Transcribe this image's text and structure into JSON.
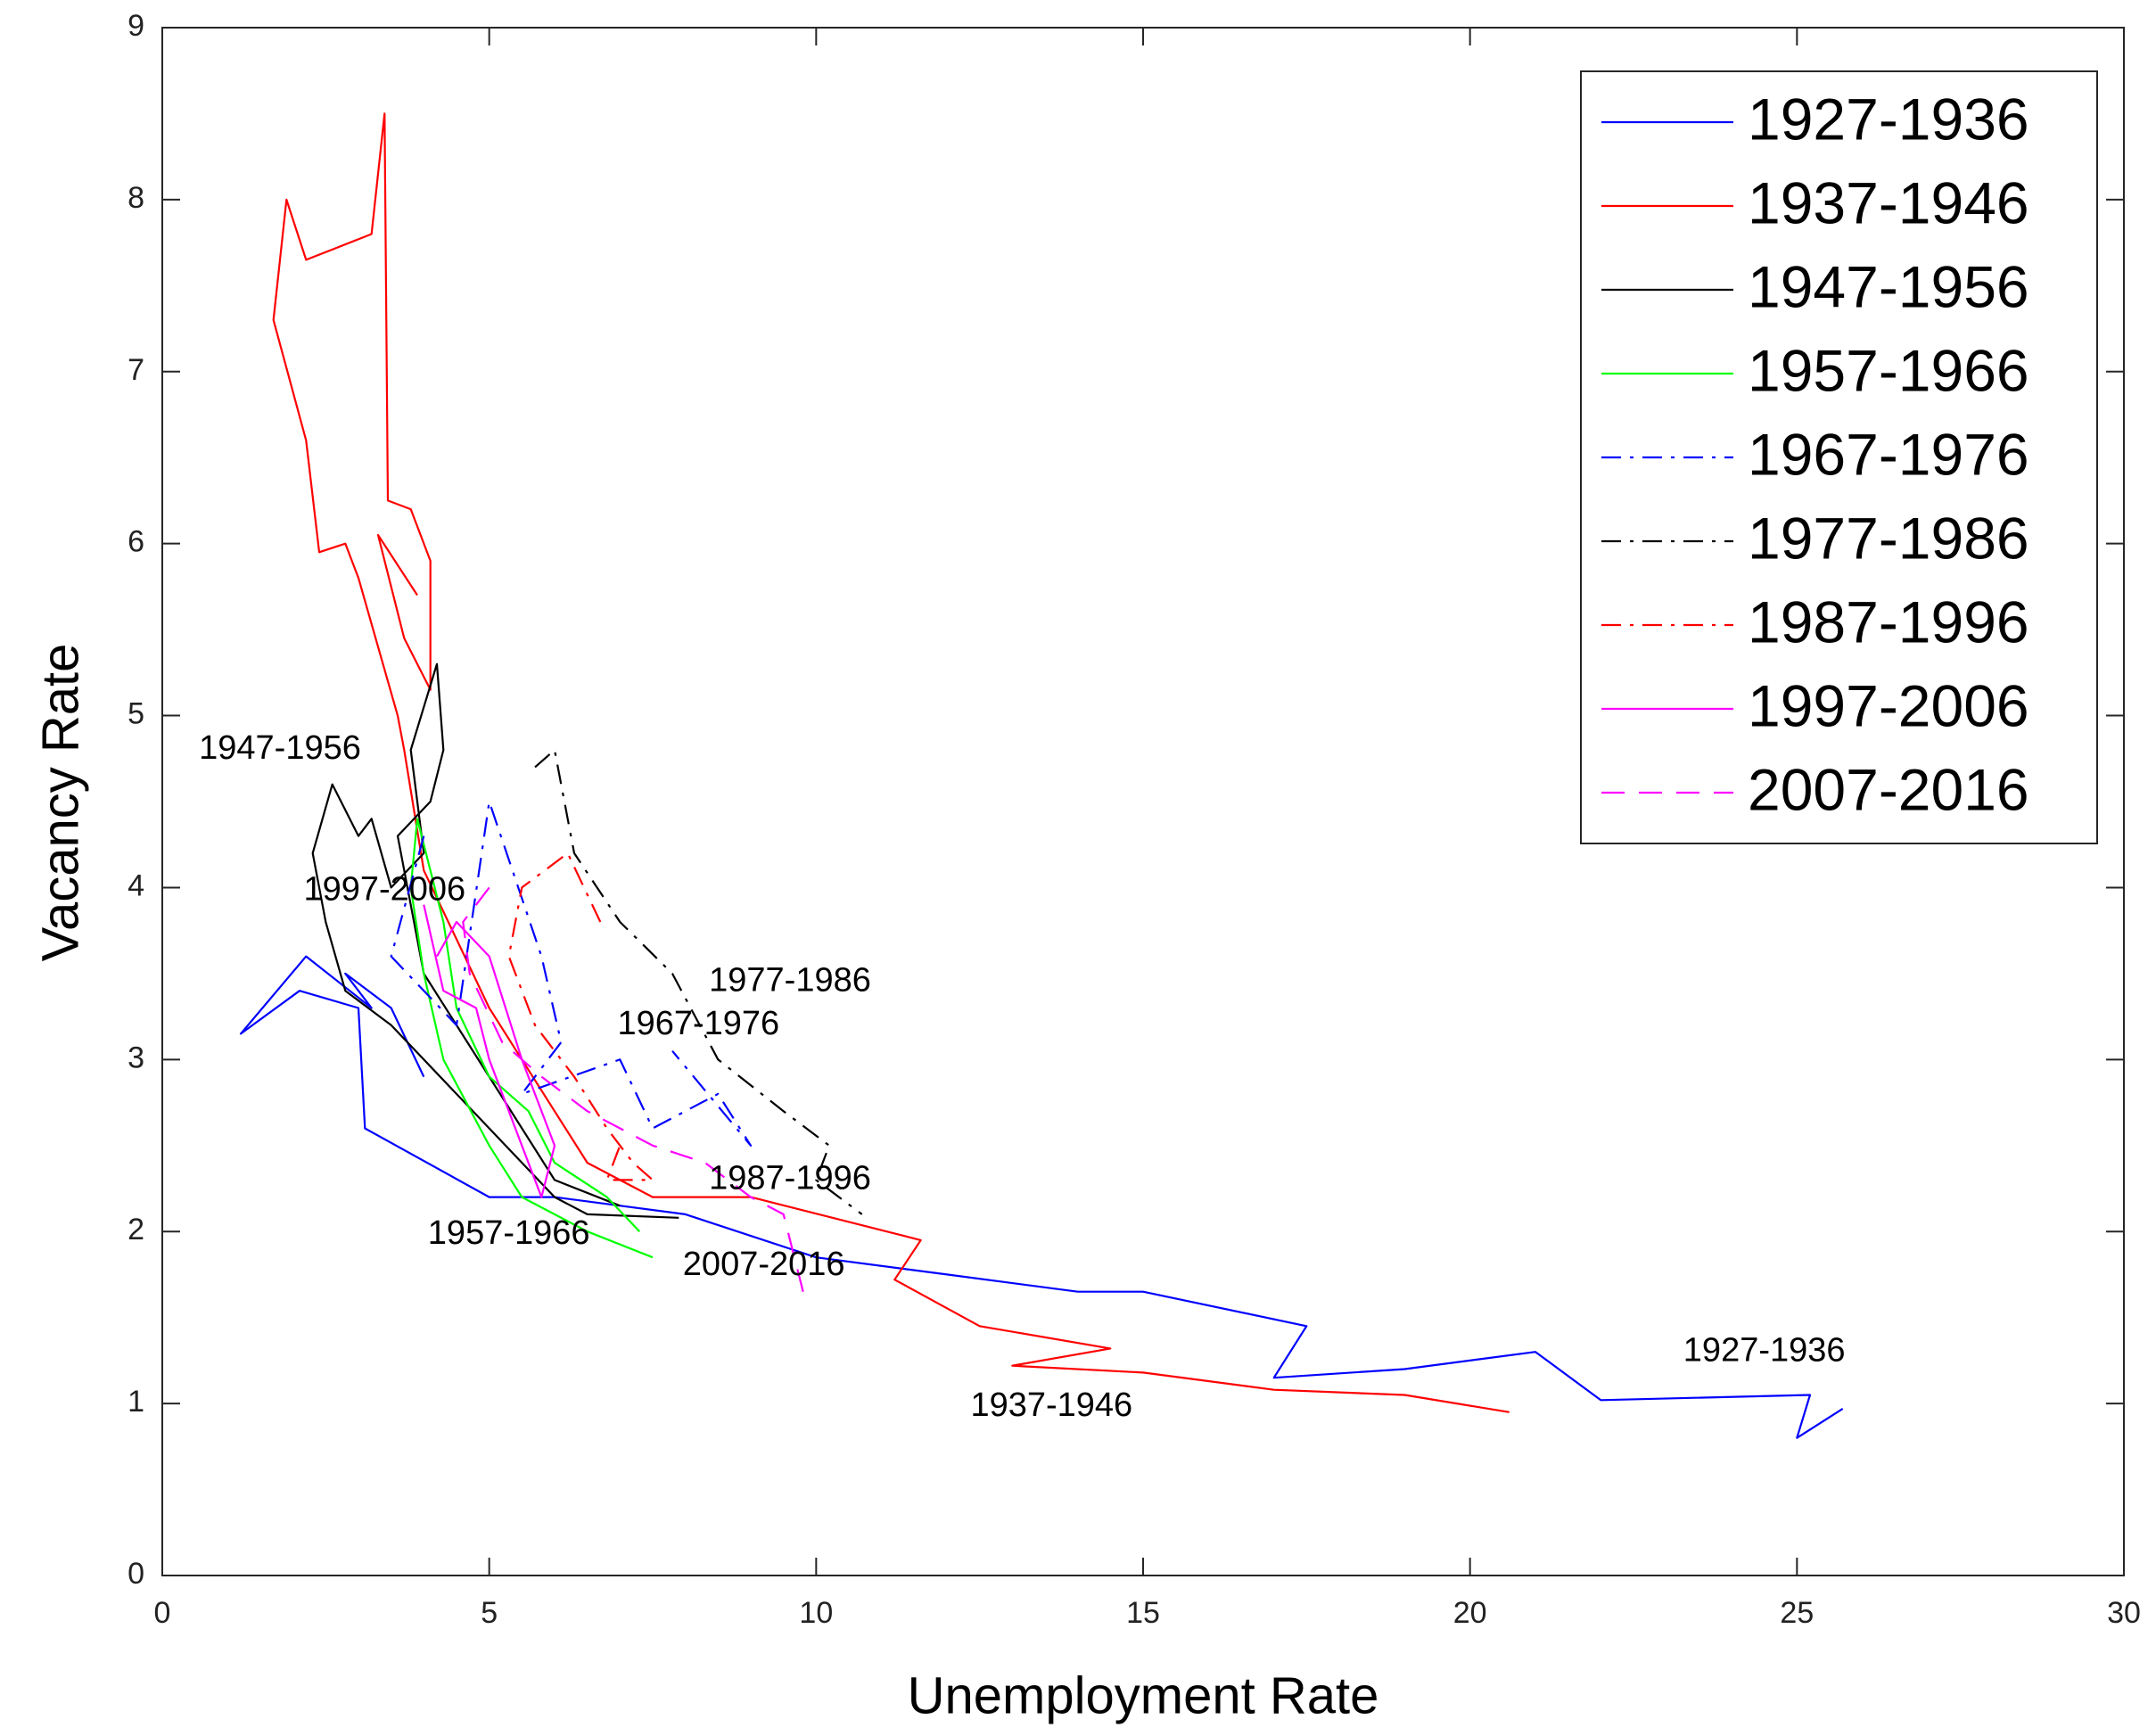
{
  "chart_data": {
    "type": "line",
    "xlabel": "Unemployment Rate",
    "ylabel": "Vacancy Rate",
    "xlim": [
      0,
      30
    ],
    "ylim": [
      0,
      9
    ],
    "xticks": [
      0,
      5,
      10,
      15,
      20,
      25,
      30
    ],
    "yticks": [
      0,
      1,
      2,
      3,
      4,
      5,
      6,
      7,
      8,
      9
    ],
    "grid": false,
    "legend": "upper right",
    "series": [
      {
        "name": "1927-1936",
        "color": "#0000ff",
        "dash": "solid",
        "x": [
          25.7,
          25.0,
          25.2,
          22.0,
          21.0,
          19.0,
          17.0,
          17.5,
          15.0,
          14.0,
          12.0,
          10.0,
          8.0,
          6.0,
          5.0,
          3.1,
          3.0,
          2.1,
          1.2,
          2.2,
          3.2,
          2.8,
          3.5,
          4.0
        ],
        "values": [
          0.97,
          0.8,
          1.05,
          1.02,
          1.3,
          1.2,
          1.15,
          1.45,
          1.65,
          1.65,
          1.75,
          1.85,
          2.1,
          2.2,
          2.2,
          2.6,
          3.3,
          3.4,
          3.15,
          3.6,
          3.3,
          3.5,
          3.3,
          2.9
        ]
      },
      {
        "name": "1937-1946",
        "color": "#ff0000",
        "dash": "solid",
        "x": [
          20.6,
          19.0,
          17.0,
          15.0,
          13.0,
          14.5,
          12.5,
          11.2,
          11.6,
          9.0,
          7.5,
          6.5,
          5.5,
          5.0,
          4.0,
          3.7,
          3.6,
          3.0,
          2.8,
          2.4,
          2.2,
          1.7,
          1.9,
          2.2,
          3.2,
          3.4,
          3.45,
          3.8,
          4.1,
          4.1,
          3.7,
          3.3,
          3.9
        ],
        "values": [
          0.95,
          1.05,
          1.08,
          1.18,
          1.22,
          1.32,
          1.45,
          1.72,
          1.95,
          2.2,
          2.2,
          2.4,
          3.0,
          3.3,
          4.1,
          4.8,
          5.0,
          5.8,
          6.0,
          5.95,
          6.6,
          7.3,
          8.0,
          7.65,
          7.8,
          8.5,
          6.25,
          6.2,
          5.9,
          5.15,
          5.45,
          6.05,
          5.7
        ]
      },
      {
        "name": "1947-1956",
        "color": "#000000",
        "dash": "solid",
        "x": [
          7.9,
          6.5,
          6.0,
          5.0,
          3.5,
          2.8,
          2.5,
          2.3,
          2.6,
          3.0,
          3.2,
          3.5,
          4.0,
          3.8,
          4.2,
          4.3,
          4.1,
          3.6,
          4.0,
          5.0,
          6.0,
          7.0
        ],
        "values": [
          2.08,
          2.1,
          2.2,
          2.6,
          3.2,
          3.4,
          3.8,
          4.2,
          4.6,
          4.3,
          4.4,
          4.0,
          4.2,
          4.8,
          5.3,
          4.8,
          4.5,
          4.3,
          3.5,
          2.9,
          2.3,
          2.15
        ]
      },
      {
        "name": "1957-1966",
        "color": "#00ff00",
        "dash": "solid",
        "x": [
          7.5,
          6.5,
          5.5,
          5.0,
          4.3,
          4.0,
          3.8,
          3.9,
          4.3,
          4.5,
          5.0,
          5.6,
          6.0,
          6.8,
          7.3
        ],
        "values": [
          1.85,
          2.0,
          2.2,
          2.5,
          3.0,
          3.5,
          4.0,
          4.4,
          3.8,
          3.3,
          2.9,
          2.7,
          2.4,
          2.2,
          2.0
        ]
      },
      {
        "name": "1967-1976",
        "color": "#0000ff",
        "dash": "dashdot",
        "x": [
          4.0,
          3.5,
          4.5,
          5.0,
          5.8,
          6.1,
          5.5,
          7.0,
          7.5,
          8.5,
          9.0,
          7.8
        ],
        "values": [
          4.3,
          3.6,
          3.2,
          4.5,
          3.6,
          3.1,
          2.8,
          3.0,
          2.6,
          2.8,
          2.5,
          3.05
        ]
      },
      {
        "name": "1977-1986",
        "color": "#000000",
        "dash": "dashdot",
        "x": [
          5.7,
          6.0,
          6.3,
          7.0,
          7.8,
          8.5,
          9.5,
          10.2,
          10.0,
          10.7
        ],
        "values": [
          4.7,
          4.8,
          4.2,
          3.8,
          3.5,
          3.0,
          2.7,
          2.5,
          2.3,
          2.1
        ]
      },
      {
        "name": "1987-1996",
        "color": "#ff0000",
        "dash": "dashdot",
        "x": [
          6.7,
          6.2,
          5.5,
          5.3,
          5.7,
          6.3,
          6.8,
          7.2,
          7.5,
          6.8,
          7.0
        ],
        "values": [
          3.8,
          4.2,
          4.0,
          3.6,
          3.2,
          2.9,
          2.6,
          2.4,
          2.3,
          2.3,
          2.5
        ]
      },
      {
        "name": "1997-2006",
        "color": "#ff00ff",
        "dash": "solid",
        "x": [
          4.0,
          4.3,
          4.8,
          5.0,
          5.5,
          5.8,
          6.0,
          5.5,
          5.0,
          4.5,
          4.2
        ],
        "values": [
          3.9,
          3.4,
          3.3,
          3.0,
          2.5,
          2.2,
          2.5,
          3.0,
          3.6,
          3.8,
          3.6
        ]
      },
      {
        "name": "2007-2016",
        "color": "#ff00ff",
        "dash": "dashed",
        "x": [
          9.8,
          9.5,
          9.0,
          8.3,
          7.5,
          6.5,
          5.8,
          5.2,
          4.7,
          4.6,
          5.0
        ],
        "values": [
          1.65,
          2.1,
          2.2,
          2.4,
          2.5,
          2.7,
          2.9,
          3.1,
          3.5,
          3.8,
          4.0
        ]
      }
    ],
    "annotations": [
      {
        "text": "1947-1956",
        "x": 1.8,
        "y": 4.8
      },
      {
        "text": "1997-2006",
        "x": 3.4,
        "y": 3.98
      },
      {
        "text": "1977-1986",
        "x": 9.6,
        "y": 3.45
      },
      {
        "text": "1967-1976",
        "x": 8.2,
        "y": 3.2
      },
      {
        "text": "1987-1996",
        "x": 9.6,
        "y": 2.3
      },
      {
        "text": "1957-1966",
        "x": 5.3,
        "y": 1.98
      },
      {
        "text": "2007-2016",
        "x": 9.2,
        "y": 1.8
      },
      {
        "text": "1927-1936",
        "x": 24.5,
        "y": 1.3
      },
      {
        "text": "1937-1946",
        "x": 13.6,
        "y": 0.98
      }
    ]
  }
}
